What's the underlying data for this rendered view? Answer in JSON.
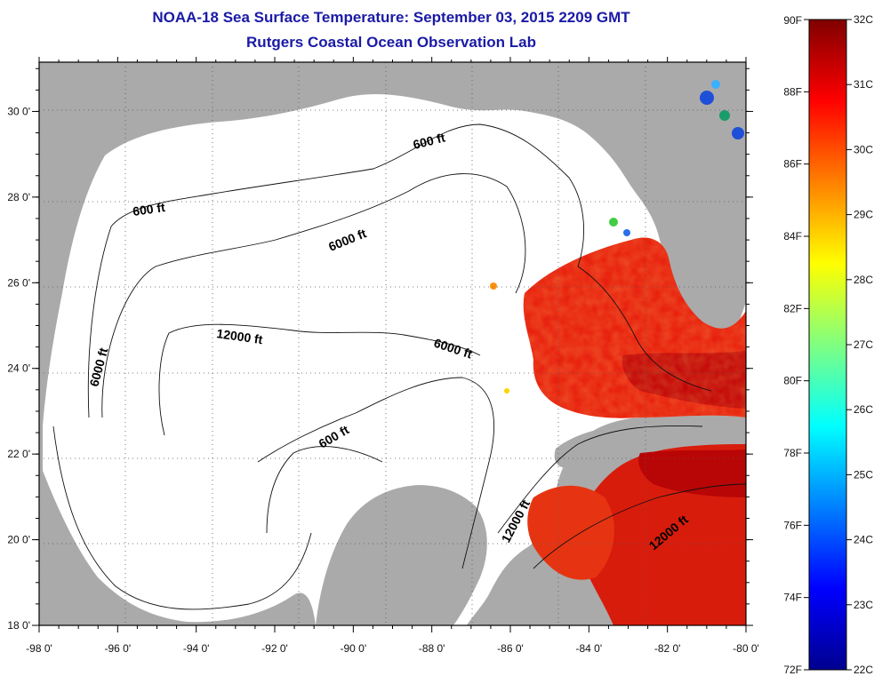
{
  "title": "NOAA-18 Sea Surface Temperature:  September 03, 2015 2209 GMT",
  "subtitle": "Rutgers Coastal Ocean Observation Lab",
  "axes": {
    "x_ticks": [
      "-98 0'",
      "-96 0'",
      "-94 0'",
      "-92 0'",
      "-90 0'",
      "-88 0'",
      "-86 0'",
      "-84 0'",
      "-82 0'",
      "-80 0'"
    ],
    "y_ticks": [
      "18 0'",
      "20 0'",
      "22 0'",
      "24 0'",
      "26 0'",
      "28 0'",
      "30 0'"
    ]
  },
  "contours": {
    "c600_a": "600 ft",
    "c600_b": "600 ft",
    "c600_c": "600 ft",
    "c6000_a": "6000 ft",
    "c6000_b": "6000 ft",
    "c6000_c": "6000 ft",
    "c12000_a": "12000 ft",
    "c12000_b": "12000 ft",
    "c12000_c": "12000 ft"
  },
  "colorbar": {
    "fahrenheit": [
      "90F",
      "88F",
      "86F",
      "84F",
      "82F",
      "80F",
      "78F",
      "76F",
      "74F",
      "72F"
    ],
    "celsius": [
      "32C",
      "31C",
      "30C",
      "29C",
      "28C",
      "27C",
      "26C",
      "25C",
      "24C",
      "23C",
      "22C"
    ],
    "colors": [
      "#00008f",
      "#0000ff",
      "#0080ff",
      "#00ffff",
      "#80ff80",
      "#ffff00",
      "#ff8000",
      "#ff0000",
      "#800000"
    ]
  },
  "colors": {
    "land": "#aaaaaa",
    "title": "#1a1aa6",
    "sst_warm": "#e8200e",
    "sst_hot": "#c40808"
  }
}
